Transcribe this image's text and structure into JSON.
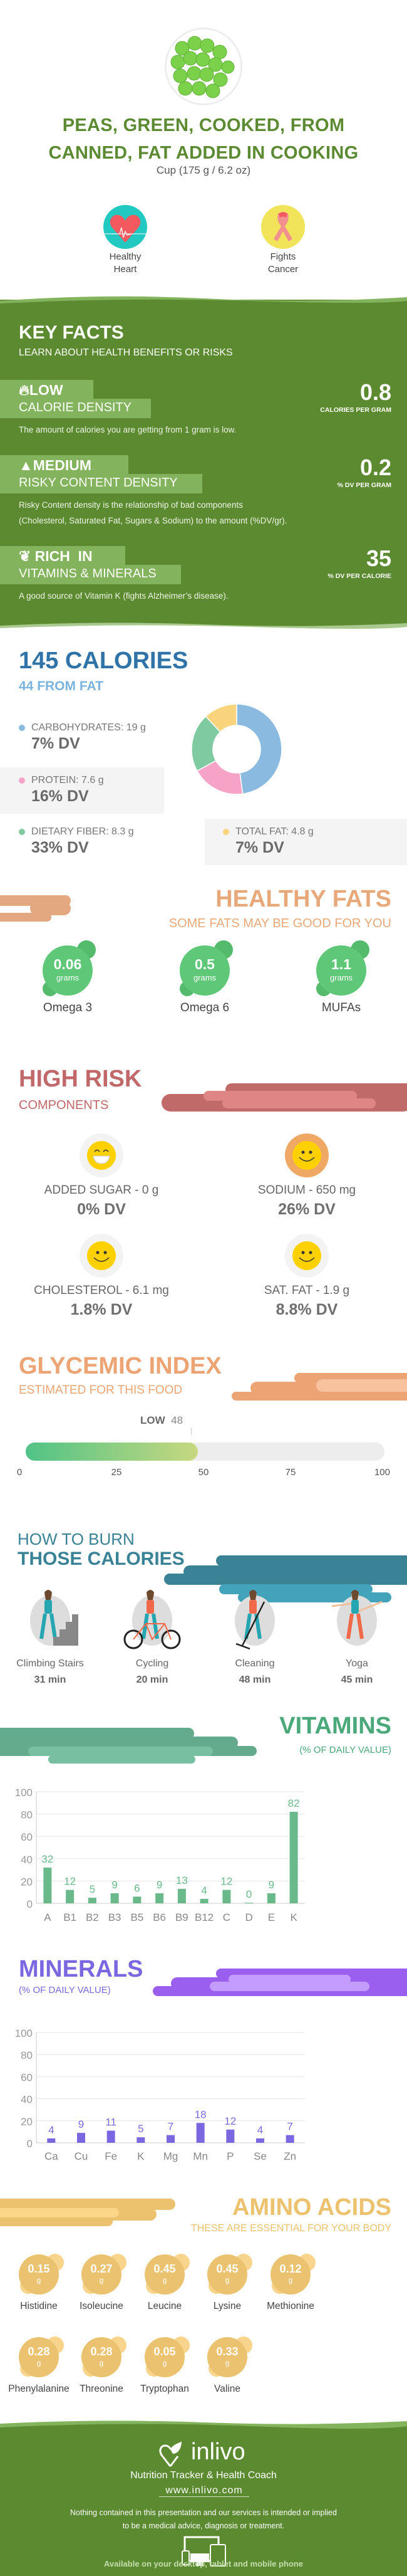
{
  "header": {
    "title_line1": "PEAS, GREEN, COOKED, FROM",
    "title_line2": "CANNED, FAT ADDED IN COOKING",
    "serving": "Cup (175 g / 6.2 oz)",
    "image_icon": "green-peas-photo",
    "benefits": [
      {
        "icon": "heart-icon",
        "line1": "Healthy",
        "line2": "Heart"
      },
      {
        "icon": "ribbon-icon",
        "line1": "Fights",
        "line2": "Cancer"
      }
    ]
  },
  "key_facts": {
    "title": "KEY FACTS",
    "subtitle": "LEARN ABOUT HEALTH BENEFITS OR RISKS",
    "facts": [
      {
        "icon": "flame-icon",
        "level": "LOW",
        "label": "CALORIE DENSITY",
        "value": "0.8",
        "unit": "CALORIES PER GRAM",
        "desc1": "The amount of calories you are getting from 1 gram is low.",
        "desc2": ""
      },
      {
        "icon": "warning-icon",
        "level": "MEDIUM",
        "label": "RISKY CONTENT DENSITY",
        "value": "0.2",
        "unit": "% DV PER GRAM",
        "desc1": "Risky Content density is the relationship of bad components",
        "desc2": "(Cholesterol, Saturated Fat, Sugars & Sodium) to the amount (%DV/gr)."
      },
      {
        "icon": "leaf-icon",
        "level": "RICH  IN",
        "label": "VITAMINS & MINERALS",
        "value": "35",
        "unit": "% DV PER CALORIE",
        "desc1": "A good source of Vitamin K (fights Alzheimer’s disease).",
        "desc2": ""
      }
    ]
  },
  "calories": {
    "title": "145 CALORIES",
    "subtitle": "44 FROM FAT",
    "macros": [
      {
        "label": "CARBOHYDRATES: 19 g",
        "dv": "7% DV",
        "grams": 19,
        "color": "#8bbae0"
      },
      {
        "label": "PROTEIN: 7.6 g",
        "dv": "16% DV",
        "grams": 7.6,
        "color": "#f7a3c8"
      },
      {
        "label": "DIETARY FIBER: 8.3 g",
        "dv": "33% DV",
        "grams": 8.3,
        "color": "#7fcaa0"
      },
      {
        "label": "TOTAL FAT: 4.8 g",
        "dv": "7% DV",
        "grams": 4.8,
        "color": "#f9d47c"
      }
    ]
  },
  "healthy_fats": {
    "title": "HEALTHY FATS",
    "subtitle": "SOME FATS MAY BE GOOD FOR YOU",
    "items": [
      {
        "value": "0.06",
        "unit": "grams",
        "name": "Omega 3"
      },
      {
        "value": "0.5",
        "unit": "grams",
        "name": "Omega 6"
      },
      {
        "value": "1.1",
        "unit": "grams",
        "name": "MUFAs"
      }
    ]
  },
  "high_risk": {
    "title": "HIGH RISK",
    "subtitle": "COMPONENTS",
    "items": [
      {
        "label": "ADDED SUGAR - 0 g",
        "dv": "0% DV",
        "icon": "grinning-face-icon",
        "ring": "#f3f3f3"
      },
      {
        "label": "SODIUM - 650 mg",
        "dv": "26% DV",
        "icon": "smiling-face-icon",
        "ring": "#f0a964"
      },
      {
        "label": "CHOLESTEROL - 6.1 mg",
        "dv": "1.8% DV",
        "icon": "smiling-face-icon",
        "ring": "#f3f3f3"
      },
      {
        "label": "SAT. FAT - 1.9 g",
        "dv": "8.8% DV",
        "icon": "smiling-face-icon",
        "ring": "#f3f3f3"
      }
    ]
  },
  "glycemic": {
    "title": "GLYCEMIC INDEX",
    "subtitle": "ESTIMATED FOR THIS FOOD",
    "level": "LOW",
    "value": 48,
    "value_label": "48",
    "ticks": [
      "0",
      "25",
      "50",
      "75",
      "100"
    ]
  },
  "burn": {
    "title1": "HOW TO BURN",
    "title2": "THOSE CALORIES",
    "activities": [
      {
        "name": "Climbing Stairs",
        "minutes": "31 min",
        "icon": "climbing-stairs-icon"
      },
      {
        "name": "Cycling",
        "minutes": "20 min",
        "icon": "cycling-icon"
      },
      {
        "name": "Cleaning",
        "minutes": "48 min",
        "icon": "cleaning-icon"
      },
      {
        "name": "Yoga",
        "minutes": "45 min",
        "icon": "yoga-icon"
      }
    ]
  },
  "vitamins": {
    "title": "VITAMINS",
    "subtitle": "(% OF DAILY VALUE)"
  },
  "minerals": {
    "title": "MINERALS",
    "subtitle": "(% OF DAILY VALUE)"
  },
  "chart_data": [
    {
      "type": "bar",
      "title": "VITAMINS",
      "subtitle": "(% OF DAILY VALUE)",
      "categories": [
        "A",
        "B1",
        "B2",
        "B3",
        "B5",
        "B6",
        "B9",
        "B12",
        "C",
        "D",
        "E",
        "K"
      ],
      "values": [
        32,
        12,
        5,
        9,
        6,
        9,
        13,
        4,
        12,
        0,
        9,
        82
      ],
      "yticks": [
        "0",
        "20",
        "40",
        "60",
        "80",
        "100"
      ],
      "ylim": [
        0,
        100
      ],
      "grid": true,
      "color": "#6ab98a"
    },
    {
      "type": "bar",
      "title": "MINERALS",
      "subtitle": "(% OF DAILY VALUE)",
      "categories": [
        "Ca",
        "Cu",
        "Fe",
        "K",
        "Mg",
        "Mn",
        "P",
        "Se",
        "Zn"
      ],
      "values": [
        4,
        9,
        11,
        5,
        7,
        18,
        12,
        4,
        7
      ],
      "yticks": [
        "0",
        "20",
        "40",
        "60",
        "80",
        "100"
      ],
      "ylim": [
        0,
        100
      ],
      "grid": true,
      "color": "#7b68e0"
    }
  ],
  "amino_acids": {
    "title": "AMINO ACIDS",
    "subtitle": "THESE ARE ESSENTIAL FOR YOUR BODY",
    "items": [
      {
        "value": "0.15",
        "unit": "g",
        "name": "Histidine"
      },
      {
        "value": "0.27",
        "unit": "g",
        "name": "Isoleucine"
      },
      {
        "value": "0.45",
        "unit": "g",
        "name": "Leucine"
      },
      {
        "value": "0.45",
        "unit": "g",
        "name": "Lysine"
      },
      {
        "value": "0.12",
        "unit": "g",
        "name": "Methionine"
      },
      {
        "value": "0.28",
        "unit": "g",
        "name": "Phenylalanine"
      },
      {
        "value": "0.28",
        "unit": "g",
        "name": "Threonine"
      },
      {
        "value": "0.05",
        "unit": "g",
        "name": "Tryptophan"
      },
      {
        "value": "0.33",
        "unit": "g",
        "name": "Valine"
      }
    ]
  },
  "footer": {
    "brand": "inlivo",
    "tagline": "Nutrition Tracker & Health Coach",
    "url": "www.inlivo.com",
    "disclaimer1": "Nothing contained in this presentation and our services is intended or implied",
    "disclaimer2": "to be a medical advice, diagnosis or treatment.",
    "available": "Available on your desktop, tablet and mobile phone"
  },
  "colors": {
    "brand_green": "#5b8a30",
    "calories_blue": "#2f73a8",
    "fats_orange": "#e8a97a",
    "risk_red": "#c0686a",
    "glycemic_orange": "#eda474",
    "burn_teal": "#3a8296",
    "vitamins_green": "#4aa87a",
    "minerals_purple": "#7b68e0",
    "amino_yellow": "#ecc26f"
  }
}
